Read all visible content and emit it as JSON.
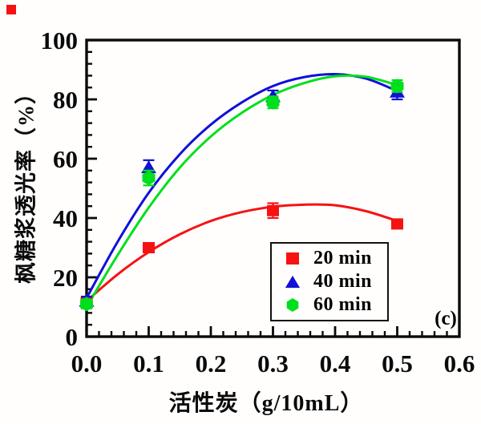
{
  "figure": {
    "panel_label": "(c)",
    "background_color": "#fffefd",
    "stray_marker_color": "#f61212"
  },
  "chart_data": {
    "type": "scatter",
    "title": "",
    "xlabel": "活性炭（g/10mL）",
    "ylabel": "枫糖浆透光率（%）",
    "xlim": [
      0,
      0.6
    ],
    "ylim": [
      0,
      100
    ],
    "grid": false,
    "legend_position": "inside-bottom-right",
    "x_minor_step": 0.02,
    "y_minor_step": 4,
    "x_ticks": [
      {
        "v": 0.0,
        "label": "0.0"
      },
      {
        "v": 0.1,
        "label": "0.1"
      },
      {
        "v": 0.2,
        "label": "0.2"
      },
      {
        "v": 0.3,
        "label": "0.3"
      },
      {
        "v": 0.4,
        "label": "0.4"
      },
      {
        "v": 0.5,
        "label": "0.5"
      },
      {
        "v": 0.6,
        "label": "0.6"
      }
    ],
    "y_ticks": [
      {
        "v": 0,
        "label": "0"
      },
      {
        "v": 20,
        "label": "20"
      },
      {
        "v": 40,
        "label": "40"
      },
      {
        "v": 60,
        "label": "60"
      },
      {
        "v": 80,
        "label": "80"
      },
      {
        "v": 100,
        "label": "100"
      }
    ],
    "series": [
      {
        "name": "20 min",
        "color": "#f61212",
        "marker": "square",
        "points": [
          {
            "x": 0.0,
            "y": 11.5,
            "err": 1.5
          },
          {
            "x": 0.1,
            "y": 30.0,
            "err": 1.5
          },
          {
            "x": 0.3,
            "y": 42.5,
            "err": 2.5
          },
          {
            "x": 0.5,
            "y": 38.0,
            "err": 1.5
          }
        ],
        "curve": [
          [
            0,
            12
          ],
          [
            0.05,
            21
          ],
          [
            0.1,
            28.5
          ],
          [
            0.15,
            34.5
          ],
          [
            0.2,
            39
          ],
          [
            0.25,
            42
          ],
          [
            0.3,
            43.8
          ],
          [
            0.35,
            44.5
          ],
          [
            0.4,
            44.3
          ],
          [
            0.45,
            42.3
          ],
          [
            0.5,
            39
          ]
        ]
      },
      {
        "name": "40 min",
        "color": "#1010d8",
        "marker": "triangle",
        "points": [
          {
            "x": 0.0,
            "y": 12.0,
            "err": 1.5
          },
          {
            "x": 0.1,
            "y": 57.0,
            "err": 2.5
          },
          {
            "x": 0.3,
            "y": 81.0,
            "err": 2.0
          },
          {
            "x": 0.5,
            "y": 82.5,
            "err": 2.5
          }
        ],
        "curve": [
          [
            0,
            13
          ],
          [
            0.05,
            32
          ],
          [
            0.1,
            48.5
          ],
          [
            0.15,
            61.5
          ],
          [
            0.2,
            71.5
          ],
          [
            0.25,
            79
          ],
          [
            0.3,
            84.5
          ],
          [
            0.35,
            87.5
          ],
          [
            0.4,
            88.5
          ],
          [
            0.45,
            87
          ],
          [
            0.5,
            82.8
          ]
        ]
      },
      {
        "name": "60 min",
        "color": "#00df1c",
        "marker": "hexagon",
        "points": [
          {
            "x": 0.0,
            "y": 11.0,
            "err": 1.5
          },
          {
            "x": 0.1,
            "y": 53.5,
            "err": 2.5
          },
          {
            "x": 0.3,
            "y": 79.0,
            "err": 2.0
          },
          {
            "x": 0.5,
            "y": 84.5,
            "err": 2.0
          }
        ],
        "curve": [
          [
            0,
            10
          ],
          [
            0.05,
            27.5
          ],
          [
            0.1,
            43.5
          ],
          [
            0.15,
            57
          ],
          [
            0.2,
            67.5
          ],
          [
            0.25,
            75.5
          ],
          [
            0.3,
            81.5
          ],
          [
            0.35,
            85.5
          ],
          [
            0.4,
            87.8
          ],
          [
            0.45,
            87.6
          ],
          [
            0.5,
            84.8
          ]
        ]
      }
    ]
  }
}
